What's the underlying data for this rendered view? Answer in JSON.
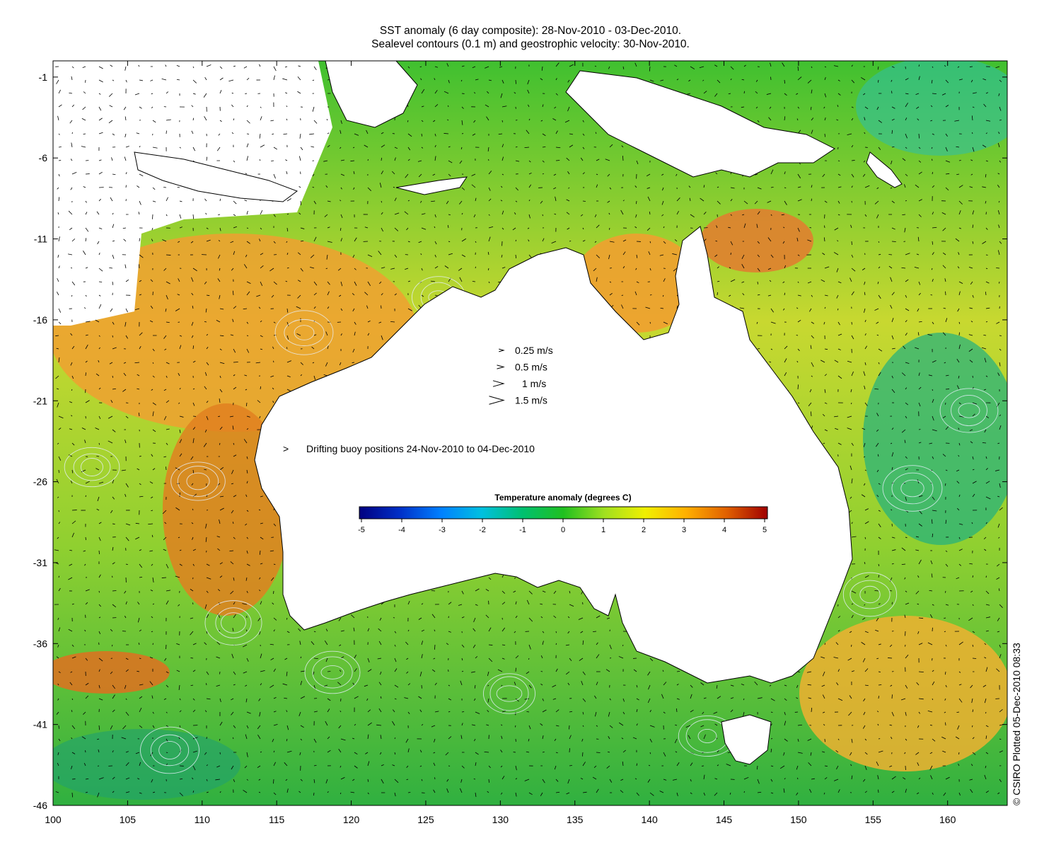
{
  "title_line1": "SST anomaly (6 day composite): 28-Nov-2010 - 03-Dec-2010.",
  "title_line2": "Sealevel contours (0.1 m) and geostrophic velocity: 30-Nov-2010.",
  "x_ticks": [
    "100",
    "105",
    "110",
    "115",
    "120",
    "125",
    "130",
    "135",
    "140",
    "145",
    "150",
    "155",
    "160"
  ],
  "y_ticks": [
    "-1",
    "-6",
    "-11",
    "-16",
    "-21",
    "-26",
    "-31",
    "-36",
    "-41",
    "-46"
  ],
  "x_range": [
    100,
    164
  ],
  "y_range": [
    -46,
    0
  ],
  "velocity_legend": [
    {
      "label": "0.25 m/s",
      "value": 0.25
    },
    {
      "label": "0.5 m/s",
      "value": 0.5
    },
    {
      "label": "1 m/s",
      "value": 1
    },
    {
      "label": "1.5 m/s",
      "value": 1.5
    }
  ],
  "buoy_legend": {
    "symbol": ">",
    "label": "Drifting buoy positions 24-Nov-2010 to 04-Dec-2010",
    "color": "#ff00ff"
  },
  "colorbar": {
    "title": "Temperature anomaly (degrees C)",
    "ticks": [
      "-5",
      "-4",
      "-3",
      "-2",
      "-1",
      "0",
      "1",
      "2",
      "3",
      "4",
      "5"
    ],
    "range": [
      -5,
      5
    ],
    "colors": [
      "#000080",
      "#0030c8",
      "#0080ff",
      "#00c0e0",
      "#00c070",
      "#20c020",
      "#a0e020",
      "#f0f000",
      "#ffb000",
      "#e06000",
      "#a00000"
    ]
  },
  "credit": "© CSIRO Plotted 05-Dec-2010 08:33",
  "land_color": "#ffffff",
  "coast_color": "#000000"
}
